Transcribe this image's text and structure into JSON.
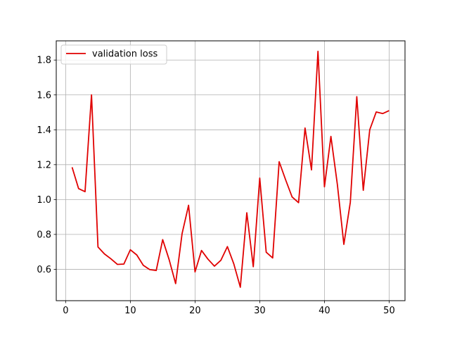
{
  "chart_data": {
    "type": "line",
    "title": "",
    "xlabel": "",
    "ylabel": "",
    "xlim": [
      -1.45,
      52.45
    ],
    "ylim": [
      0.42,
      1.91
    ],
    "xticks": [
      0,
      10,
      20,
      30,
      40,
      50
    ],
    "xtick_labels": [
      "0",
      "10",
      "20",
      "30",
      "40",
      "50"
    ],
    "yticks": [
      0.6,
      0.8,
      1.0,
      1.2,
      1.4,
      1.6,
      1.8
    ],
    "ytick_labels": [
      "0.6",
      "0.8",
      "1.0",
      "1.2",
      "1.4",
      "1.6",
      "1.8"
    ],
    "grid": true,
    "legend_position": "upper left",
    "series": [
      {
        "name": "validation loss",
        "color": "#e00000",
        "x": [
          1,
          2,
          3,
          4,
          5,
          6,
          7,
          8,
          9,
          10,
          11,
          12,
          13,
          14,
          15,
          16,
          17,
          18,
          19,
          20,
          21,
          22,
          23,
          24,
          25,
          26,
          27,
          28,
          29,
          30,
          31,
          32,
          33,
          34,
          35,
          36,
          37,
          38,
          39,
          40,
          41,
          42,
          43,
          44,
          45,
          46,
          47,
          48,
          49,
          50
        ],
        "y": [
          1.185,
          1.063,
          1.045,
          1.6,
          0.728,
          0.688,
          0.66,
          0.628,
          0.63,
          0.712,
          0.682,
          0.623,
          0.598,
          0.593,
          0.77,
          0.655,
          0.518,
          0.805,
          0.967,
          0.585,
          0.708,
          0.658,
          0.618,
          0.652,
          0.73,
          0.63,
          0.497,
          0.924,
          0.615,
          1.123,
          0.698,
          0.665,
          1.217,
          1.113,
          1.015,
          0.982,
          1.41,
          1.17,
          1.85,
          1.073,
          1.362,
          1.085,
          0.743,
          0.985,
          1.59,
          1.053,
          1.4,
          1.502,
          1.493,
          1.51
        ]
      }
    ]
  }
}
